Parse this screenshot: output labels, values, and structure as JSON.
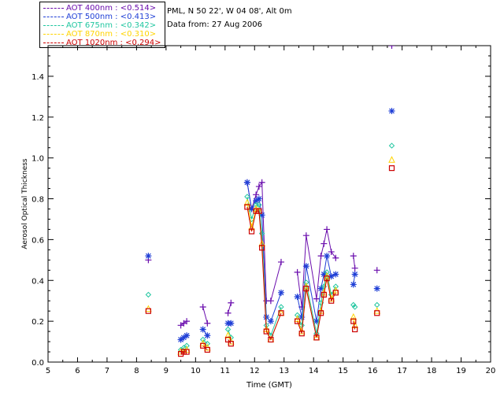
{
  "header": {
    "site": "PML, N 50 22', W 04 08', Alt 0m",
    "date_line": "Data from: 27 Aug 2006"
  },
  "legend": [
    {
      "label": "AOT  400nm : <0.514>",
      "color": "#6a0dad",
      "marker": "plus"
    },
    {
      "label": "AOT  500nm : <0.413>",
      "color": "#1f3fd6",
      "marker": "asterisk"
    },
    {
      "label": "AOT  675nm : <0.342>",
      "color": "#20c6a0",
      "marker": "diamond"
    },
    {
      "label": "AOT  870nm : <0.310>",
      "color": "#ffd400",
      "marker": "triangle"
    },
    {
      "label": "AOT 1020nm : <0.294>",
      "color": "#cc0000",
      "marker": "square"
    }
  ],
  "chart_data": {
    "type": "scatter",
    "xlabel": "Time (GMT)",
    "ylabel": "Aerosol Optical Thickness",
    "xlim": [
      5,
      20
    ],
    "ylim": [
      0,
      1.55
    ],
    "xticks": [
      5,
      6,
      7,
      8,
      9,
      10,
      11,
      12,
      13,
      14,
      15,
      16,
      17,
      18,
      19,
      20
    ],
    "yticks": [
      0.0,
      0.2,
      0.4,
      0.6,
      0.8,
      1.0,
      1.2,
      1.4
    ],
    "ytick_labels": [
      "0.0",
      "0.2",
      "0.4",
      "0.6",
      "0.8",
      "1.0",
      "1.2",
      "1.4"
    ],
    "x": [
      8.4,
      9.5,
      9.6,
      9.7,
      10.25,
      10.4,
      11.1,
      11.2,
      11.75,
      11.9,
      12.05,
      12.15,
      12.25,
      12.4,
      12.55,
      12.9,
      13.45,
      13.6,
      13.75,
      14.1,
      14.25,
      14.35,
      14.45,
      14.6,
      14.75,
      15.35,
      15.4,
      16.15,
      16.65
    ],
    "series": [
      {
        "name": "AOT  400nm",
        "color": "#6a0dad",
        "marker": "plus",
        "values": [
          0.5,
          0.18,
          0.19,
          0.2,
          0.27,
          0.19,
          0.24,
          0.29,
          0.88,
          0.75,
          0.82,
          0.86,
          0.88,
          0.3,
          0.3,
          0.49,
          0.44,
          0.27,
          0.62,
          0.31,
          0.52,
          0.58,
          0.65,
          0.54,
          0.51,
          0.52,
          0.46,
          0.45,
          1.55
        ]
      },
      {
        "name": "AOT  500nm",
        "color": "#1f3fd6",
        "marker": "asterisk",
        "values": [
          0.52,
          0.11,
          0.12,
          0.13,
          0.16,
          0.13,
          0.19,
          0.19,
          0.88,
          0.75,
          0.79,
          0.8,
          0.72,
          0.22,
          0.2,
          0.34,
          0.32,
          0.22,
          0.47,
          0.2,
          0.36,
          0.43,
          0.52,
          0.42,
          0.43,
          0.38,
          0.43,
          0.36,
          1.23
        ]
      },
      {
        "name": "AOT  675nm",
        "color": "#20c6a0",
        "marker": "diamond",
        "values": [
          0.33,
          0.06,
          0.07,
          0.08,
          0.11,
          0.09,
          0.16,
          0.12,
          0.81,
          0.7,
          0.77,
          0.77,
          0.63,
          0.18,
          0.13,
          0.27,
          0.23,
          0.18,
          0.39,
          0.14,
          0.29,
          0.37,
          0.44,
          0.33,
          0.37,
          0.28,
          0.27,
          0.28,
          1.06
        ]
      },
      {
        "name": "AOT  870nm",
        "color": "#ffd400",
        "marker": "triangle",
        "values": [
          0.26,
          0.05,
          0.05,
          0.06,
          0.09,
          0.07,
          0.13,
          0.1,
          0.78,
          0.66,
          0.75,
          0.74,
          0.58,
          0.16,
          0.11,
          0.24,
          0.21,
          0.15,
          0.37,
          0.12,
          0.25,
          0.34,
          0.42,
          0.31,
          0.35,
          0.22,
          0.18,
          0.25,
          0.99
        ]
      },
      {
        "name": "AOT 1020nm",
        "color": "#cc0000",
        "marker": "square",
        "values": [
          0.25,
          0.04,
          0.05,
          0.05,
          0.08,
          0.06,
          0.11,
          0.09,
          0.76,
          0.64,
          0.74,
          0.74,
          0.56,
          0.15,
          0.11,
          0.24,
          0.2,
          0.14,
          0.36,
          0.12,
          0.24,
          0.33,
          0.41,
          0.3,
          0.34,
          0.2,
          0.16,
          0.24,
          0.95
        ]
      }
    ],
    "grid": false,
    "legend_position": "top-left (outside plot)"
  }
}
